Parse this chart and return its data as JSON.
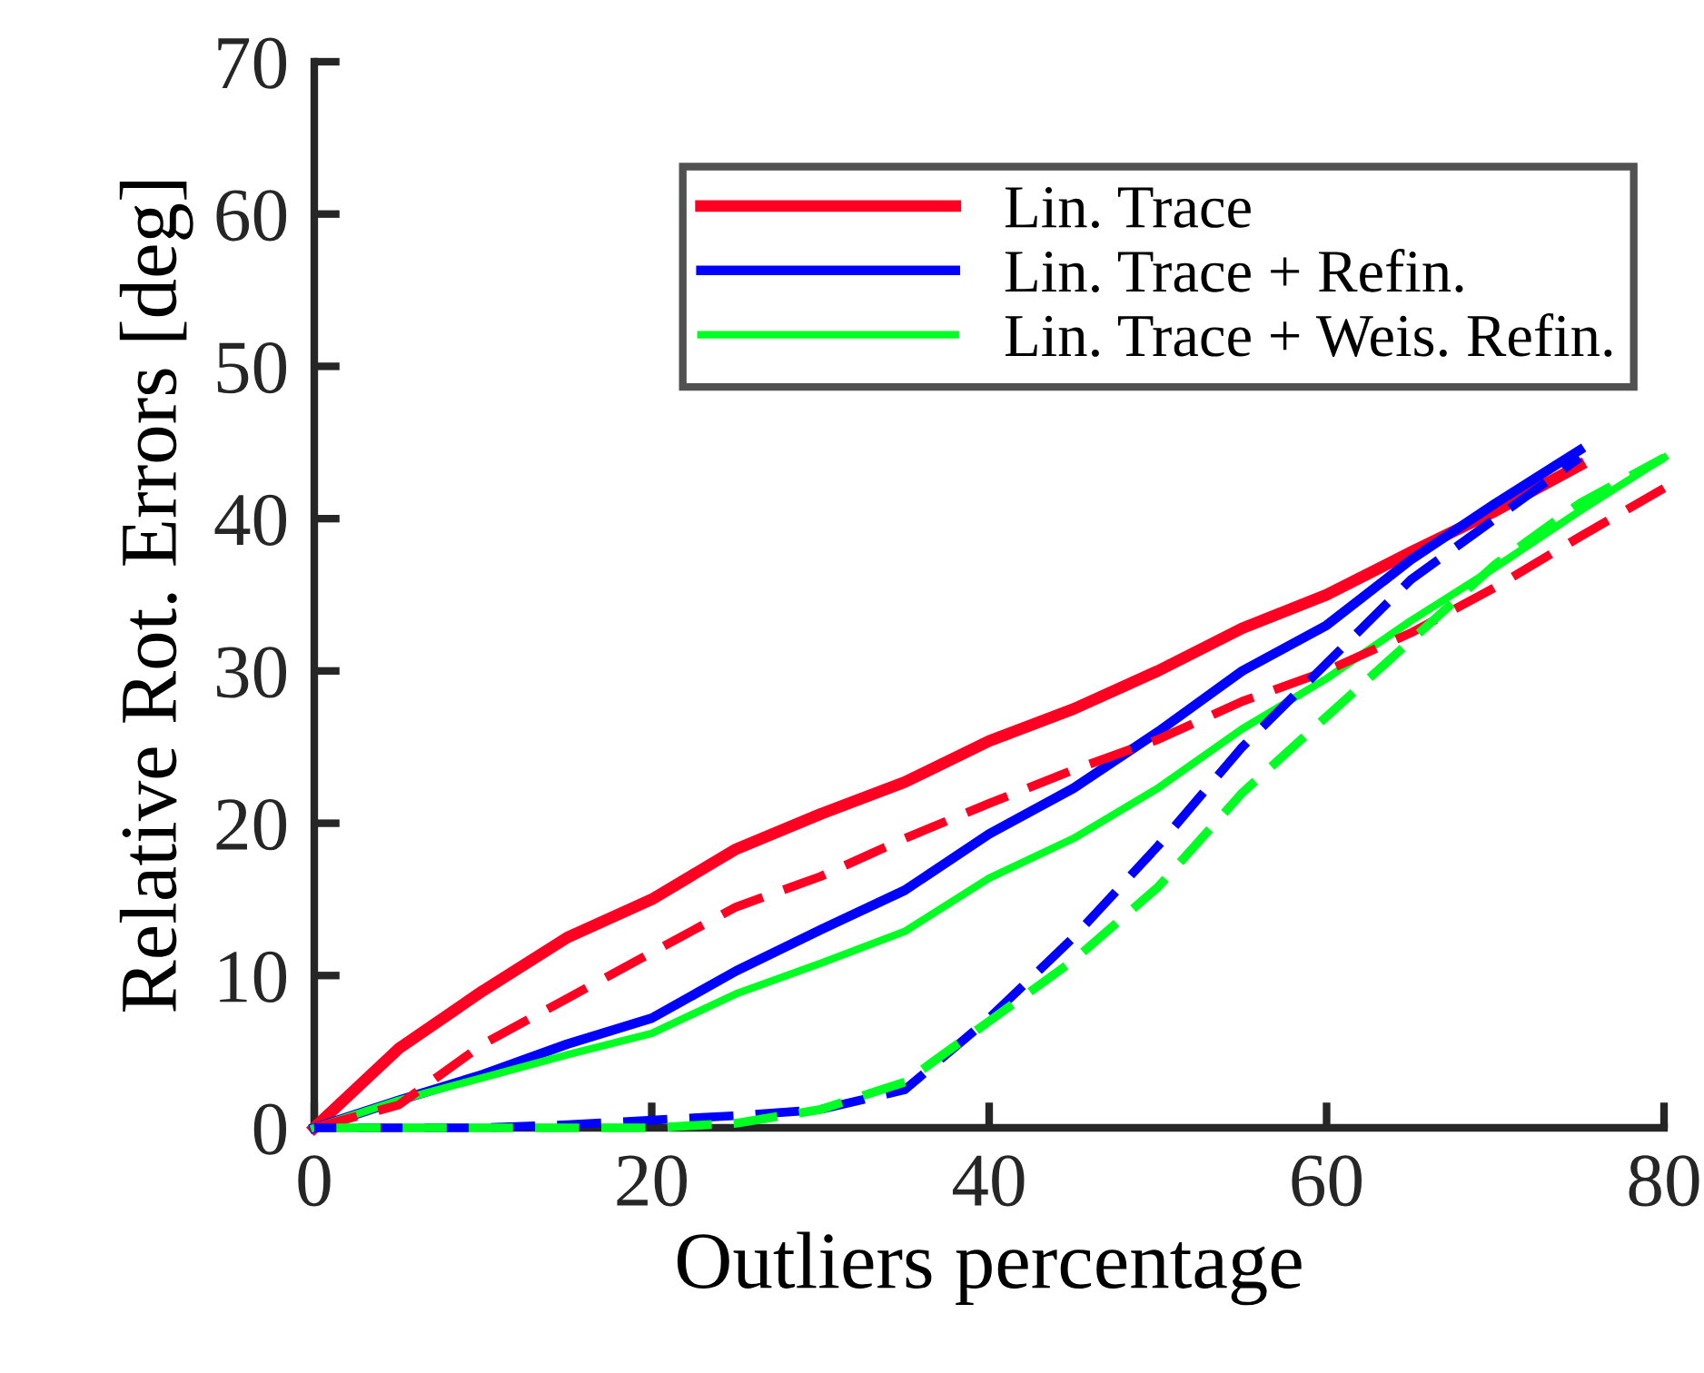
{
  "chart_data": {
    "type": "line",
    "xlabel": "Outliers percentage",
    "ylabel": "Relative Rot. Errors [deg]",
    "x": [
      0,
      5,
      10,
      15,
      20,
      25,
      30,
      35,
      40,
      45,
      50,
      55,
      60,
      65,
      70,
      75,
      80
    ],
    "series": [
      {
        "name": "Lin. Trace",
        "color": "#ff0022",
        "line_style": "solid",
        "values": [
          0,
          5.2,
          9,
          12.5,
          15,
          18.3,
          20.6,
          22.7,
          25.4,
          27.5,
          30,
          32.8,
          35,
          37.8,
          40.5,
          43.5,
          null
        ]
      },
      {
        "name": "Lin. Trace + Refin.",
        "color": "#0000ff",
        "line_style": "solid",
        "values": [
          0,
          1.8,
          3.5,
          5.5,
          7.2,
          10.3,
          13,
          15.6,
          19.3,
          22.3,
          26,
          30,
          33,
          37.3,
          41,
          44.5,
          null
        ]
      },
      {
        "name": "Lin. Trace + Weis. Refin.",
        "color": "#00ff22",
        "line_style": "solid",
        "values": [
          0,
          1.8,
          3.3,
          4.8,
          6.2,
          8.8,
          10.8,
          12.9,
          16.4,
          19,
          22.3,
          26.2,
          29.5,
          33.3,
          36.8,
          40.5,
          44
        ]
      },
      {
        "color": "#ff0022",
        "line_style": "dashed",
        "values": [
          0,
          1.5,
          5.5,
          8.5,
          11.5,
          14.5,
          16.5,
          19,
          21.3,
          23.5,
          25.5,
          28,
          30,
          32.5,
          35.5,
          38.8,
          42
        ]
      },
      {
        "color": "#0000ff",
        "line_style": "dashed",
        "values": [
          0,
          0,
          0,
          0.2,
          0.5,
          0.8,
          1.2,
          2.5,
          7.2,
          12.5,
          18.5,
          25,
          30.5,
          36,
          40,
          44,
          null
        ]
      },
      {
        "color": "#00ff22",
        "line_style": "dashed",
        "values": [
          0,
          0,
          0,
          0,
          0,
          0.3,
          1.2,
          3,
          7,
          11,
          15.8,
          22,
          27,
          32,
          37,
          41,
          44
        ]
      }
    ],
    "xlim": [
      0,
      80
    ],
    "xticks": [
      0,
      20,
      40,
      60,
      80
    ],
    "ylim": [
      0,
      70
    ],
    "yticks": [
      0,
      10,
      20,
      30,
      40,
      50,
      60,
      70
    ],
    "grid": false,
    "legend": "top right",
    "marker": "none"
  }
}
